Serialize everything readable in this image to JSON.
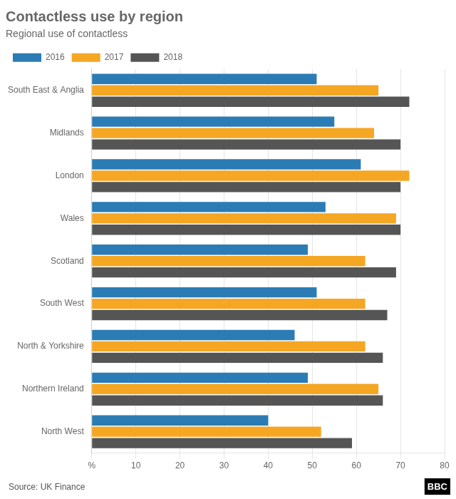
{
  "chart_data": {
    "type": "bar",
    "orientation": "horizontal",
    "title": "Contactless use by region",
    "subtitle": "Regional use of contactless",
    "annotations": [
      "Source: UK Finance",
      "BBC"
    ],
    "categories": [
      "South East & Anglia",
      "Midlands",
      "London",
      "Wales",
      "Scotland",
      "South West",
      "North & Yorkshire",
      "Northern Ireland",
      "North West"
    ],
    "series": [
      {
        "name": "2016",
        "color": "#2b7cb5",
        "values": [
          51,
          55,
          61,
          53,
          49,
          51,
          46,
          49,
          40
        ]
      },
      {
        "name": "2017",
        "color": "#f5a623",
        "values": [
          65,
          64,
          72,
          69,
          62,
          62,
          62,
          65,
          52
        ]
      },
      {
        "name": "2018",
        "color": "#555555",
        "values": [
          72,
          70,
          70,
          70,
          69,
          67,
          66,
          66,
          59
        ]
      }
    ],
    "xlim": [
      0,
      80
    ],
    "xticks": [
      {
        "value": 0,
        "label": "%"
      },
      10,
      20,
      30,
      40,
      50,
      60,
      70,
      80
    ],
    "grid": true,
    "legend": "top"
  }
}
